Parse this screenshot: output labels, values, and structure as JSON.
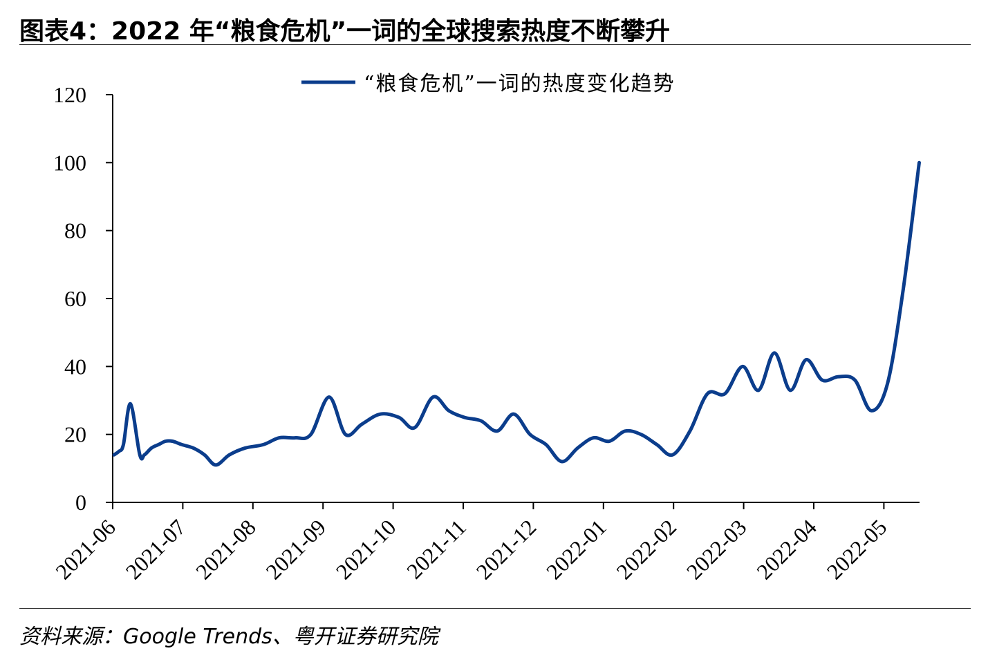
{
  "header": {
    "title": "图表4：2022 年“粮食危机”一词的全球搜索热度不断攀升"
  },
  "footer": {
    "source": "资料来源：Google Trends、粤开证券研究院"
  },
  "colors": {
    "series": "#0b3d8c"
  },
  "chart_data": {
    "type": "line",
    "title": "",
    "xlabel": "",
    "ylabel": "",
    "ylim": [
      0,
      120
    ],
    "yticks": [
      0,
      20,
      40,
      60,
      80,
      100,
      120
    ],
    "grid": false,
    "legend_position": "top-center",
    "categories": [
      "2021-06",
      "2021-07",
      "2021-08",
      "2021-09",
      "2021-10",
      "2021-11",
      "2021-12",
      "2022-01",
      "2022-02",
      "2022-03",
      "2022-04",
      "2022-05"
    ],
    "series": [
      {
        "name": "“粮食危机”一词的热度变化趋势",
        "points": [
          [
            "2021-06-01",
            14
          ],
          [
            "2021-06-03",
            15
          ],
          [
            "2021-06-05",
            17
          ],
          [
            "2021-06-08",
            29
          ],
          [
            "2021-06-12",
            14
          ],
          [
            "2021-06-14",
            14
          ],
          [
            "2021-06-17",
            16
          ],
          [
            "2021-06-20",
            17
          ],
          [
            "2021-06-23",
            18
          ],
          [
            "2021-06-26",
            18
          ],
          [
            "2021-06-30",
            17
          ],
          [
            "2021-07-05",
            16
          ],
          [
            "2021-07-10",
            14
          ],
          [
            "2021-07-15",
            11
          ],
          [
            "2021-07-21",
            14
          ],
          [
            "2021-07-28",
            16
          ],
          [
            "2021-08-05",
            17
          ],
          [
            "2021-08-12",
            19
          ],
          [
            "2021-08-19",
            19
          ],
          [
            "2021-08-26",
            20
          ],
          [
            "2021-09-03",
            31
          ],
          [
            "2021-09-10",
            20
          ],
          [
            "2021-09-17",
            23
          ],
          [
            "2021-09-25",
            26
          ],
          [
            "2021-10-03",
            25
          ],
          [
            "2021-10-10",
            22
          ],
          [
            "2021-10-18",
            31
          ],
          [
            "2021-10-25",
            27
          ],
          [
            "2021-11-01",
            25
          ],
          [
            "2021-11-08",
            24
          ],
          [
            "2021-11-15",
            21
          ],
          [
            "2021-11-22",
            26
          ],
          [
            "2021-11-29",
            20
          ],
          [
            "2021-12-06",
            17
          ],
          [
            "2021-12-13",
            12
          ],
          [
            "2021-12-20",
            16
          ],
          [
            "2021-12-27",
            19
          ],
          [
            "2022-01-03",
            18
          ],
          [
            "2022-01-10",
            21
          ],
          [
            "2022-01-17",
            20
          ],
          [
            "2022-01-24",
            17
          ],
          [
            "2022-01-31",
            14
          ],
          [
            "2022-02-07",
            21
          ],
          [
            "2022-02-14",
            32
          ],
          [
            "2022-02-21",
            32
          ],
          [
            "2022-02-28",
            40
          ],
          [
            "2022-03-07",
            33
          ],
          [
            "2022-03-14",
            44
          ],
          [
            "2022-03-21",
            33
          ],
          [
            "2022-03-28",
            42
          ],
          [
            "2022-04-04",
            36
          ],
          [
            "2022-04-11",
            37
          ],
          [
            "2022-04-18",
            36
          ],
          [
            "2022-04-25",
            27
          ],
          [
            "2022-05-02",
            35
          ],
          [
            "2022-05-09",
            63
          ],
          [
            "2022-05-16",
            100
          ]
        ]
      }
    ]
  }
}
